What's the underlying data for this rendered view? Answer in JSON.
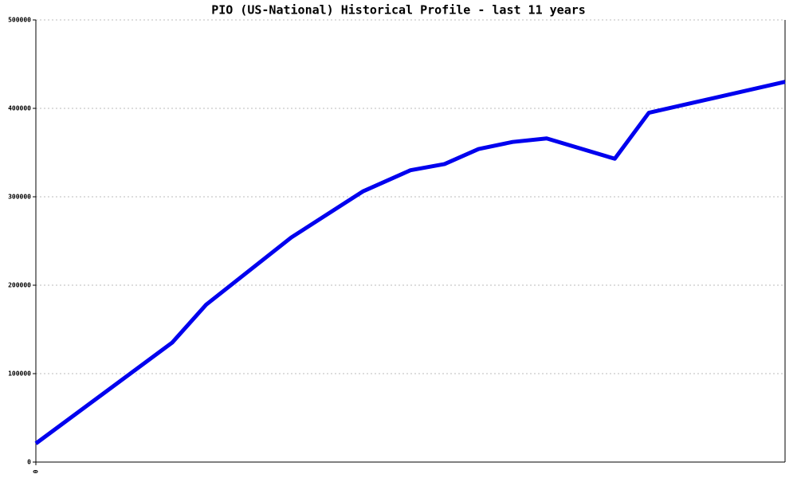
{
  "chart_data": {
    "type": "line",
    "title": "PIO (US-National) Historical Profile - last 11 years",
    "x": [
      0,
      2,
      2.5,
      3.75,
      4.8,
      5.5,
      6,
      6.5,
      7,
      7.5,
      8.5,
      9,
      11
    ],
    "series": [
      {
        "color": "#0000ee",
        "values": [
          21000,
          135000,
          178000,
          254000,
          306000,
          330000,
          337000,
          354000,
          362000,
          366000,
          343000,
          395000,
          430000
        ]
      }
    ],
    "xlim": [
      0,
      11
    ],
    "xticks": [
      0
    ],
    "ylim": [
      0,
      500000
    ],
    "yticks": [
      0,
      100000,
      200000,
      300000,
      400000,
      500000
    ],
    "grid": true
  }
}
